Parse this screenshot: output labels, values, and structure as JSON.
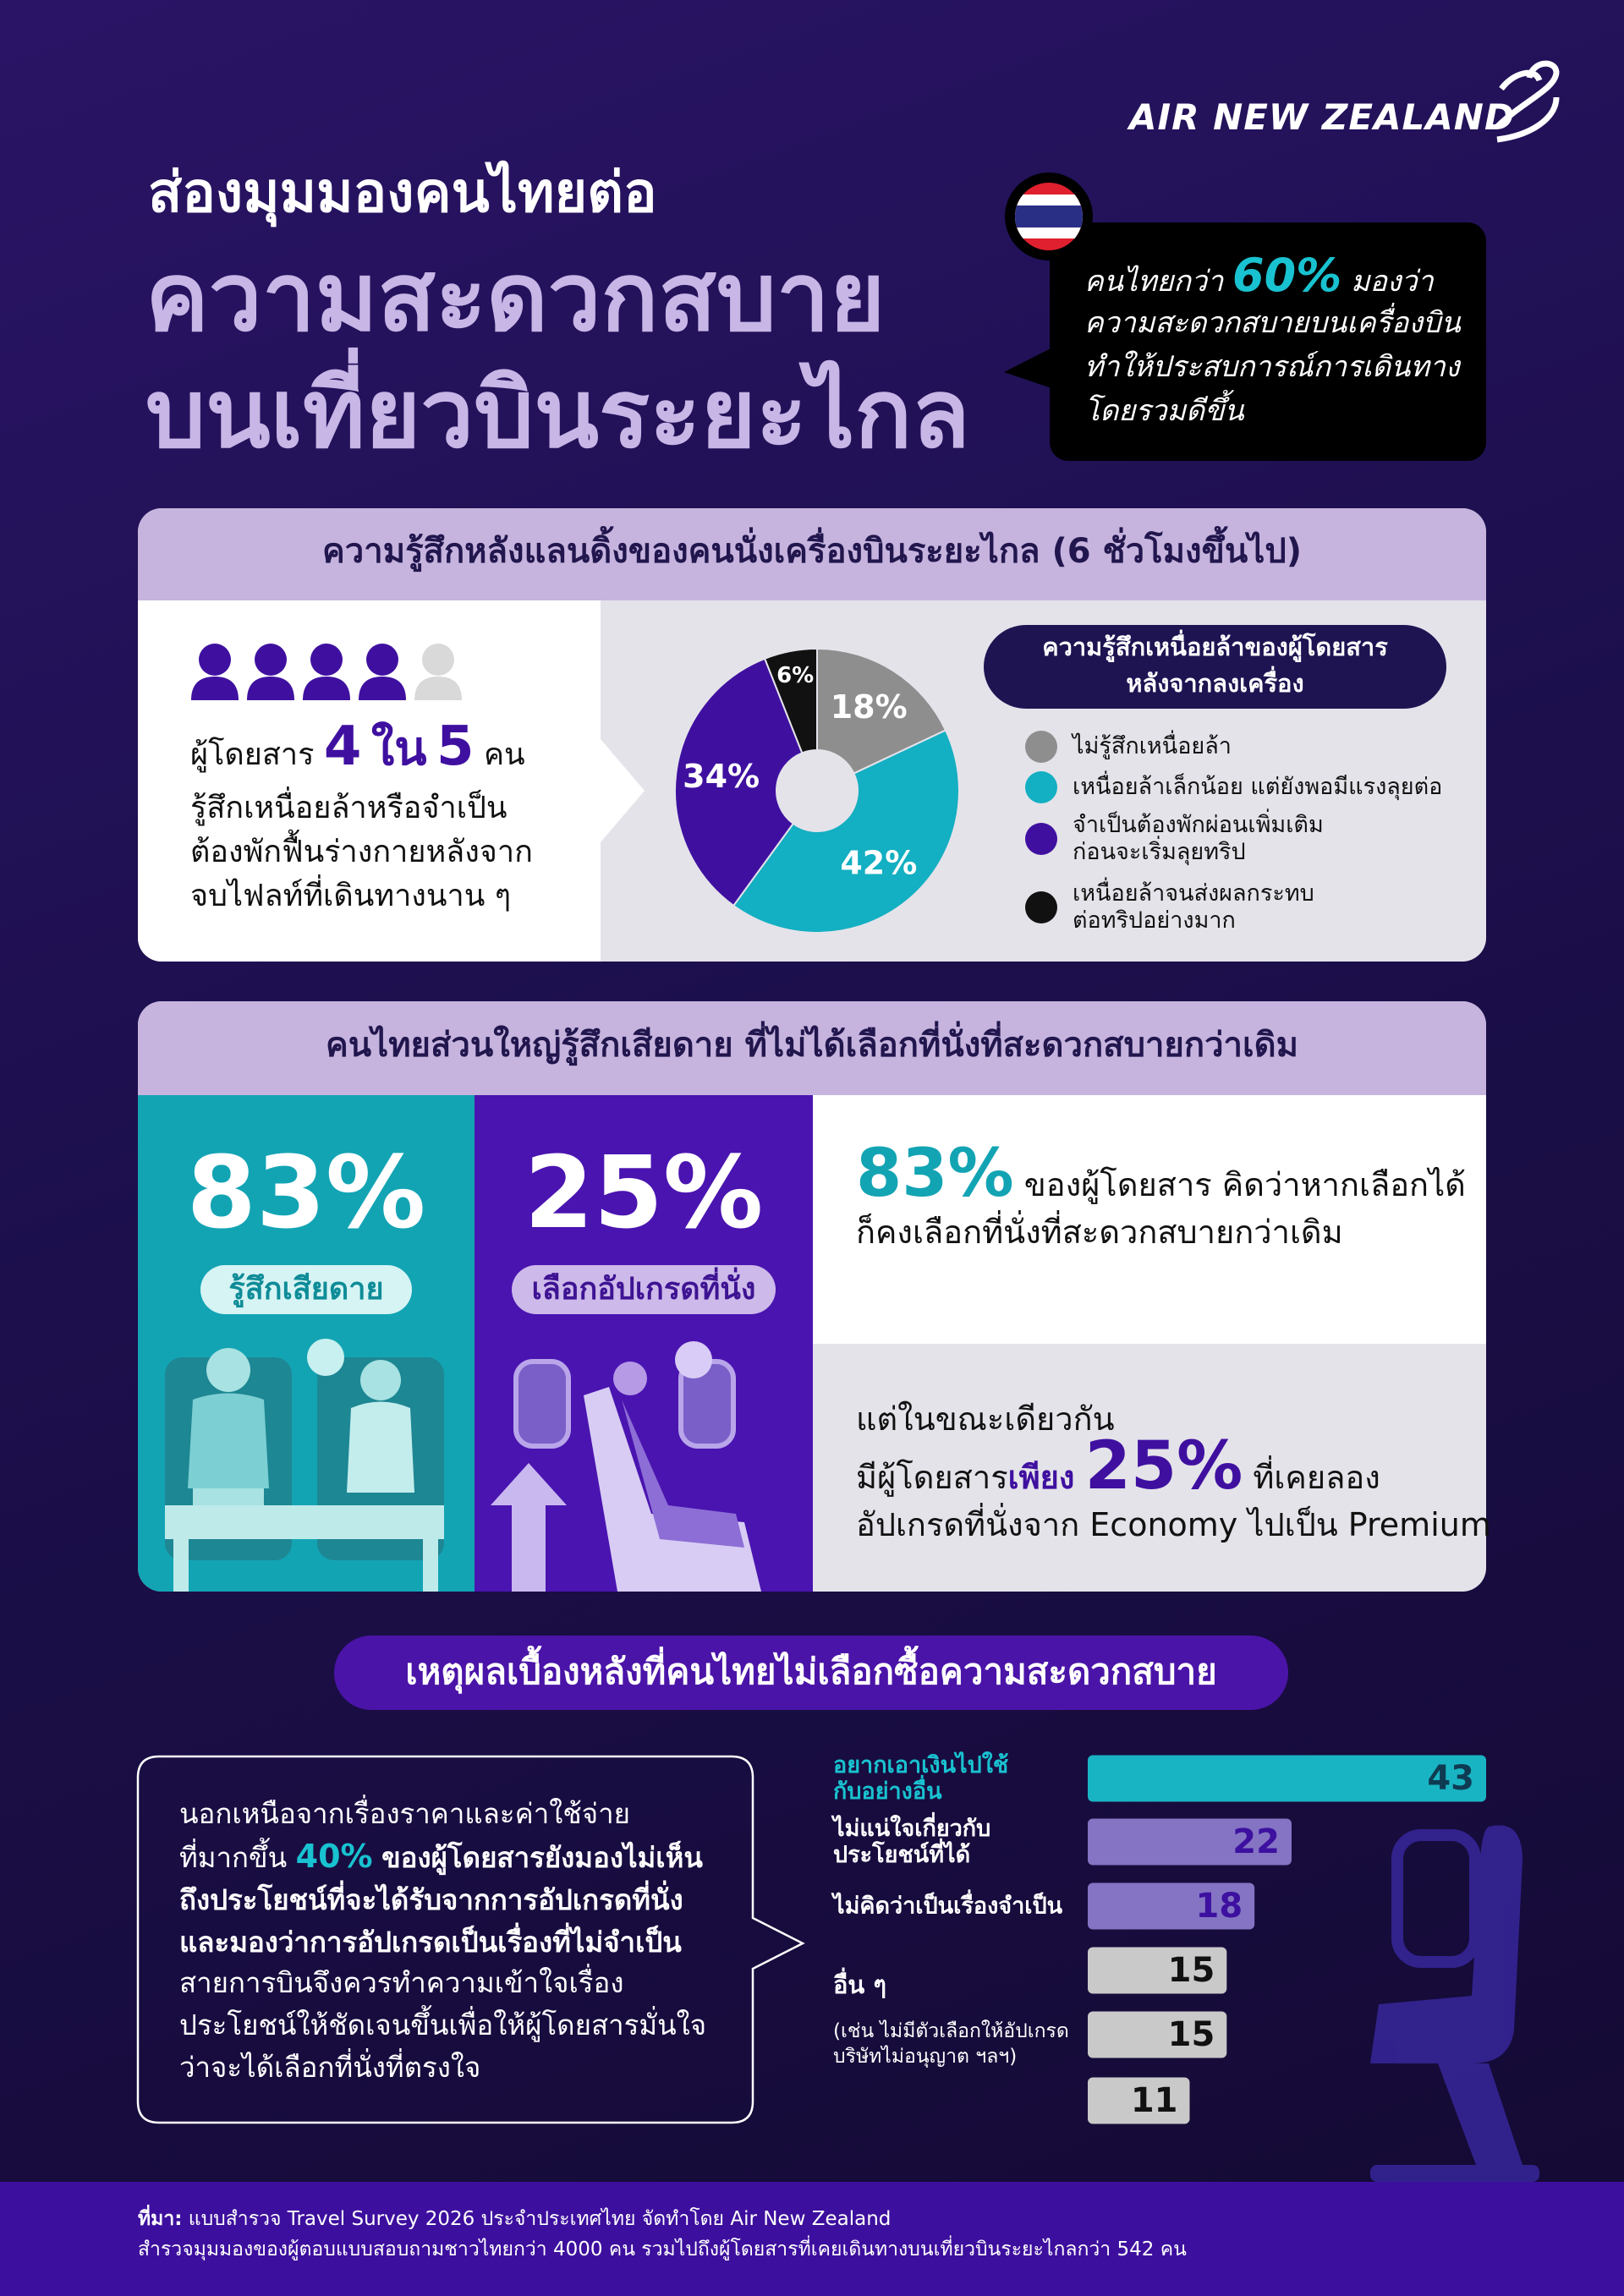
{
  "logo": "AIR NEW ZEALAND",
  "title": {
    "line1": "ส่องมุมมองคนไทยต่อ",
    "line2": "ความสะดวกสบาย",
    "line3": "บนเที่ยวบินระยะไกล"
  },
  "callout": {
    "before": "คนไทยกว่า",
    "highlight": "60%",
    "after": "มองว่า",
    "rest": "ความสะดวกสบายบนเครื่องบิน\nทำให้ประสบการณ์การเดินทาง\nโดยรวมดีขึ้น"
  },
  "section1": {
    "header": "ความรู้สึกหลังแลนดิ้งของคนนั่งเครื่องบินระยะไกล (6 ชั่วโมงขึ้นไป)",
    "stat": {
      "before": "ผู้โดยสาร",
      "n1": "4",
      "mid": "ใน",
      "n2": "5",
      "after": "คน",
      "rest": "รู้สึกเหนื่อยล้าหรือจำเป็น\nต้องพักฟื้นร่างกายหลังจาก\nจบไฟลท์ที่เดินทางนาน ๆ"
    }
  },
  "section2": {
    "header": "คนไทยส่วนใหญ่รู้สึกเสียดาย ที่ไม่ได้เลือกที่นั่งที่สะดวกสบายกว่าเดิม",
    "card1": {
      "value": "83%",
      "tag": "รู้สึกเสียดาย"
    },
    "card2": {
      "value": "25%",
      "tag": "เลือกอัปเกรดที่นั่ง"
    },
    "note1": {
      "highlight": "83%",
      "rest": "ของผู้โดยสาร คิดว่าหากเลือกได้\nก็คงเลือกที่นั่งที่สะดวกสบายกว่าเดิม"
    },
    "note2": {
      "before": "แต่ในขณะเดียวกัน\nมีผู้โดยสาร",
      "emphasis": "เพียง",
      "highlight": "25%",
      "after": "ที่เคยลอง\nอัปเกรดที่นั่งจาก Economy ไปเป็น Premium"
    }
  },
  "section3": {
    "title": "เหตุผลเบื้องหลังที่คนไทยไม่เลือกซื้อความสะดวกสบาย",
    "box": {
      "before": "นอกเหนือจากเรื่องราคาและค่าใช้จ่าย\nที่มากขึ้น",
      "highlight": "40%",
      "bold": "ของผู้โดยสารยังมองไม่เห็น\nถึงประโยชน์ที่จะได้รับจากการอัปเกรดที่นั่ง\nและมองว่าการอัปเกรดเป็นเรื่องที่ไม่จำเป็น",
      "after": "สายการบินจึงควรทำความเข้าใจเรื่อง\nประโยชน์ให้ชัดเจนขึ้นเพื่อให้ผู้โดยสารมั่นใจ\nว่าจะได้เลือกที่นั่งที่ตรงใจ"
    }
  },
  "chart_data": [
    {
      "type": "pie",
      "title": "ความรู้สึกเหนื่อยล้าของผู้โดยสาร\nหลังจากลงเครื่อง",
      "categories": [
        "ไม่รู้สึกเหนื่อยล้า",
        "เหนื่อยล้าเล็กน้อย แต่ยังพอมีแรงลุยต่อ",
        "จำเป็นต้องพักผ่อนเพิ่มเติม\nก่อนจะเริ่มลุยทริป",
        "เหนื่อยล้าจนส่งผลกระทบ\nต่อทริปอย่างมาก"
      ],
      "values": [
        18,
        42,
        34,
        6
      ],
      "value_labels": [
        "18%",
        "42%",
        "34%",
        "6%"
      ],
      "colors": [
        "#8e8e8e",
        "#13afc2",
        "#3f10a0",
        "#111111"
      ]
    },
    {
      "type": "bar",
      "orientation": "horizontal",
      "categories": [
        "อยากเอาเงินไปใช้\nกับอย่างอื่น",
        "ไม่แน่ใจเกี่ยวกับ\nประโยชน์ที่ได้",
        "ไม่คิดว่าเป็นเรื่องจำเป็น",
        null,
        null,
        null
      ],
      "group": {
        "label": "อื่น ๆ",
        "note": "(เช่น ไม่มีตัวเลือกให้อัปเกรด\nบริษัทไม่อนุญาต ฯลฯ)"
      },
      "values": [
        43,
        22,
        18,
        15,
        15,
        11
      ],
      "colors": [
        "#19b4c3",
        "#8474c3",
        "#8474c3",
        "#c9c9c9",
        "#c9c9c9",
        "#c9c9c9"
      ],
      "value_colors": [
        "#0f3b52",
        "#3d10a0",
        "#3d10a0",
        "#111111",
        "#111111",
        "#111111"
      ],
      "label_colors": [
        "#19c2d0",
        "#ffffff",
        "#ffffff",
        "#ffffff",
        "#ffffff",
        "#ffffff"
      ]
    }
  ],
  "footer": {
    "label": "ที่มา:",
    "text": "แบบสำรวจ Travel Survey 2026 ประจำประเทศไทย จัดทำโดย Air New Zealand\nสำรวจมุมมองของผู้ตอบแบบสอบถามชาวไทยกว่า 4000 คน รวมไปถึงผู้โดยสารที่เคยเดินทางบนเที่ยวบินระยะไกลกว่า 542 คน"
  }
}
